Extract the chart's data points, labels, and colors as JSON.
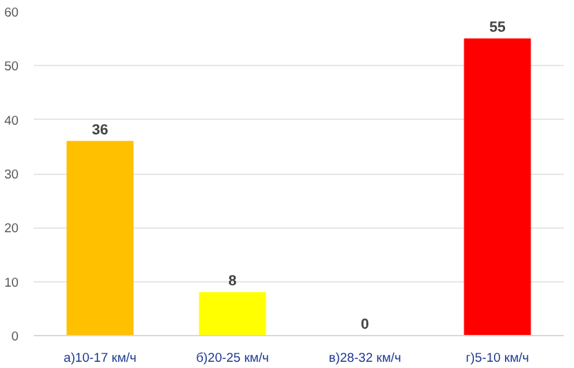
{
  "chart_data": {
    "type": "bar",
    "categories": [
      "а)10-17 км/ч",
      "б)20-25 км/ч",
      "в)28-32 км/ч",
      "г)5-10 км/ч"
    ],
    "values": [
      36,
      8,
      0,
      55
    ],
    "colors": [
      "#ffc000",
      "#ffff00",
      "#00b050",
      "#ff0000"
    ],
    "ylim": [
      0,
      60
    ],
    "yticks": [
      0,
      10,
      20,
      30,
      40,
      50,
      60
    ],
    "grid": "y",
    "data_labels": true
  }
}
